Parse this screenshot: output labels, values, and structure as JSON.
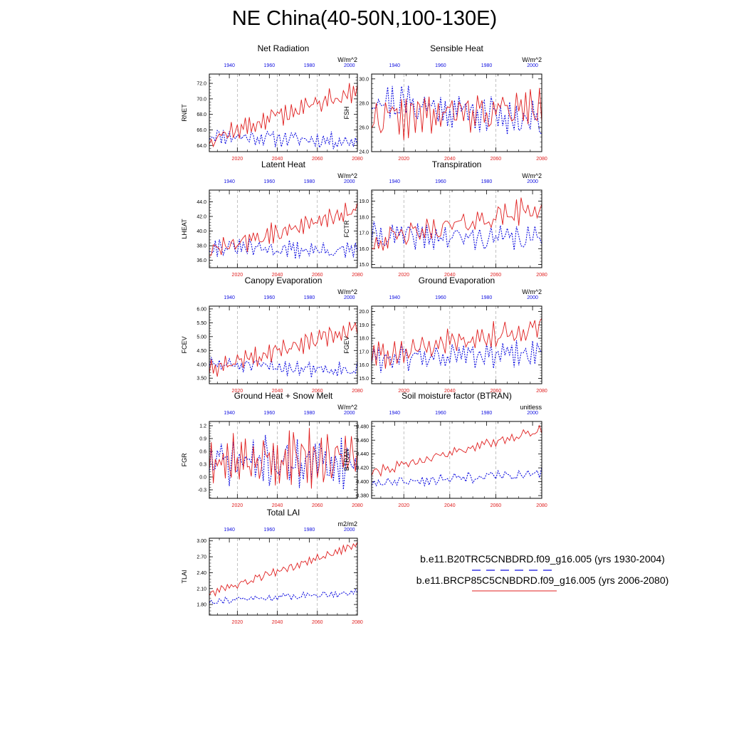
{
  "title": "NE China(40-50N,100-130E)",
  "legend": {
    "items": [
      {
        "label": "b.e11.B20TRC5CNBDRD.f09_g16.005 (yrs 1930-2004)",
        "color": "#1010e0",
        "dash": "dashed"
      },
      {
        "label": "b.e11.BRCP85C5CNBDRD.f09_g16.005 (yrs 2006-2080)",
        "color": "#e02020",
        "dash": "solid"
      }
    ]
  },
  "colors": {
    "historical": "#1010e0",
    "future": "#e02020"
  },
  "chart_data": [
    {
      "type": "line",
      "title": "Net Radiation",
      "ylabel": "RNET",
      "units": "W/m^2",
      "ylim": [
        63.2,
        73.2
      ],
      "yticks": [
        64,
        66,
        68,
        70,
        72
      ],
      "ytick_labels": [
        "64.0",
        "66.0",
        "68.0",
        "70.0",
        "72.0"
      ],
      "x_bottom": {
        "range": [
          2006,
          2080
        ],
        "ticks": [
          2020,
          2040,
          2060,
          2080
        ]
      },
      "x_top": {
        "range": [
          1930,
          2004
        ],
        "ticks": [
          1940,
          1960,
          1980,
          2000
        ]
      },
      "series": [
        {
          "name": "historical",
          "start": 65.3,
          "end": 64.5,
          "amp": 1.1,
          "seed": 11
        },
        {
          "name": "future",
          "start": 64.8,
          "end": 71.2,
          "amp": 1.4,
          "seed": 12
        }
      ]
    },
    {
      "type": "line",
      "title": "Sensible Heat",
      "ylabel": "FSH",
      "units": "W/m^2",
      "ylim": [
        24,
        30.4
      ],
      "yticks": [
        24,
        26,
        28,
        30
      ],
      "ytick_labels": [
        "24.0",
        "26.0",
        "28.0",
        "30.0"
      ],
      "x_bottom": {
        "range": [
          2006,
          2080
        ],
        "ticks": [
          2020,
          2040,
          2060,
          2080
        ]
      },
      "x_top": {
        "range": [
          1930,
          2004
        ],
        "ticks": [
          1940,
          1960,
          1980,
          2000
        ]
      },
      "series": [
        {
          "name": "historical",
          "start": 28.3,
          "end": 26.5,
          "amp": 1.7,
          "seed": 21
        },
        {
          "name": "future",
          "start": 26.7,
          "end": 27.6,
          "amp": 1.7,
          "seed": 22
        }
      ]
    },
    {
      "type": "line",
      "title": "Latent Heat",
      "ylabel": "LHEAT",
      "units": "W/m^2",
      "ylim": [
        35,
        45.6
      ],
      "yticks": [
        36,
        38,
        40,
        42,
        44
      ],
      "ytick_labels": [
        "36.0",
        "38.0",
        "40.0",
        "42.0",
        "44.0"
      ],
      "x_bottom": {
        "range": [
          2006,
          2080
        ],
        "ticks": [
          2020,
          2040,
          2060,
          2080
        ]
      },
      "x_top": {
        "range": [
          1930,
          2004
        ],
        "ticks": [
          1940,
          1960,
          1980,
          2000
        ]
      },
      "series": [
        {
          "name": "historical",
          "start": 37.8,
          "end": 37.2,
          "amp": 1.2,
          "seed": 31
        },
        {
          "name": "future",
          "start": 37.2,
          "end": 42.8,
          "amp": 1.4,
          "seed": 32
        }
      ]
    },
    {
      "type": "line",
      "title": "Transpiration",
      "ylabel": "FCTR",
      "units": "W/m^2",
      "ylim": [
        14.8,
        19.7
      ],
      "yticks": [
        15,
        16,
        17,
        18,
        19
      ],
      "ytick_labels": [
        "15.0",
        "16.0",
        "17.0",
        "18.0",
        "19.0"
      ],
      "x_bottom": {
        "range": [
          2006,
          2080
        ],
        "ticks": [
          2020,
          2040,
          2060,
          2080
        ]
      },
      "x_top": {
        "range": [
          1930,
          2004
        ],
        "ticks": [
          1940,
          1960,
          1980,
          2000
        ]
      },
      "series": [
        {
          "name": "historical",
          "start": 16.8,
          "end": 16.6,
          "amp": 0.9,
          "seed": 41
        },
        {
          "name": "future",
          "start": 16.4,
          "end": 18.6,
          "amp": 0.8,
          "seed": 42
        }
      ]
    },
    {
      "type": "line",
      "title": "Canopy Evaporation",
      "ylabel": "FCEV",
      "units": "W/m^2",
      "ylim": [
        3.3,
        6.1
      ],
      "yticks": [
        3.5,
        4,
        4.5,
        5,
        5.5,
        6
      ],
      "ytick_labels": [
        "3.50",
        "4.00",
        "4.50",
        "5.00",
        "5.50",
        "6.00"
      ],
      "x_bottom": {
        "range": [
          2006,
          2080
        ],
        "ticks": [
          2020,
          2040,
          2060,
          2080
        ]
      },
      "x_top": {
        "range": [
          1930,
          2004
        ],
        "ticks": [
          1940,
          1960,
          1980,
          2000
        ]
      },
      "series": [
        {
          "name": "historical",
          "start": 4.0,
          "end": 3.8,
          "amp": 0.3,
          "seed": 51
        },
        {
          "name": "future",
          "start": 3.8,
          "end": 5.3,
          "amp": 0.35,
          "seed": 52
        }
      ]
    },
    {
      "type": "line",
      "title": "Ground Evaporation",
      "ylabel": "FGEV",
      "units": "W/m^2",
      "ylim": [
        14.6,
        20.4
      ],
      "yticks": [
        15,
        16,
        17,
        18,
        19,
        20
      ],
      "ytick_labels": [
        "15.0",
        "16.0",
        "17.0",
        "18.0",
        "19.0",
        "20.0"
      ],
      "x_bottom": {
        "range": [
          2006,
          2080
        ],
        "ticks": [
          2020,
          2040,
          2060,
          2080
        ]
      },
      "x_top": {
        "range": [
          1930,
          2004
        ],
        "ticks": [
          1940,
          1960,
          1980,
          2000
        ]
      },
      "series": [
        {
          "name": "historical",
          "start": 16.5,
          "end": 16.8,
          "amp": 1.0,
          "seed": 61
        },
        {
          "name": "future",
          "start": 16.6,
          "end": 18.9,
          "amp": 1.0,
          "seed": 62
        }
      ]
    },
    {
      "type": "line",
      "title": "Ground Heat + Snow Melt",
      "ylabel": "FGR",
      "units": "W/m^2",
      "ylim": [
        -0.5,
        1.3
      ],
      "yticks": [
        -0.3,
        0,
        0.3,
        0.6,
        0.9,
        1.2
      ],
      "ytick_labels": [
        "-0.3",
        "0.0",
        "0.3",
        "0.6",
        "0.9",
        "1.2"
      ],
      "x_bottom": {
        "range": [
          2006,
          2080
        ],
        "ticks": [
          2020,
          2040,
          2060,
          2080
        ]
      },
      "x_top": {
        "range": [
          1930,
          2004
        ],
        "ticks": [
          1940,
          1960,
          1980,
          2000
        ]
      },
      "series": [
        {
          "name": "historical",
          "start": 0.35,
          "end": 0.35,
          "amp": 0.6,
          "seed": 71
        },
        {
          "name": "future",
          "start": 0.4,
          "end": 0.45,
          "amp": 0.6,
          "seed": 72
        }
      ]
    },
    {
      "type": "line",
      "title": "Soil moisture factor (BTRAN)",
      "ylabel": "BTRAN",
      "units": "unitless",
      "ylim": [
        0.376,
        0.487
      ],
      "yticks": [
        0.38,
        0.4,
        0.42,
        0.44,
        0.46,
        0.48
      ],
      "ytick_labels": [
        "0.380",
        "0.400",
        "0.420",
        "0.440",
        "0.460",
        "0.480"
      ],
      "x_bottom": {
        "range": [
          2006,
          2080
        ],
        "ticks": [
          2020,
          2040,
          2060,
          2080
        ]
      },
      "x_top": {
        "range": [
          1930,
          2004
        ],
        "ticks": [
          1940,
          1960,
          1980,
          2000
        ]
      },
      "series": [
        {
          "name": "historical",
          "start": 0.398,
          "end": 0.412,
          "amp": 0.008,
          "seed": 81
        },
        {
          "name": "future",
          "start": 0.412,
          "end": 0.476,
          "amp": 0.008,
          "seed": 82
        }
      ]
    },
    {
      "type": "line",
      "title": "Total LAI",
      "ylabel": "TLAI",
      "units": "m2/m2",
      "ylim": [
        1.6,
        3.05
      ],
      "yticks": [
        1.8,
        2.1,
        2.4,
        2.7,
        3.0
      ],
      "ytick_labels": [
        "1.80",
        "2.10",
        "2.40",
        "2.70",
        "3.00"
      ],
      "x_bottom": {
        "range": [
          2006,
          2080
        ],
        "ticks": [
          2020,
          2040,
          2060,
          2080
        ]
      },
      "x_top": {
        "range": [
          1930,
          2004
        ],
        "ticks": [
          1940,
          1960,
          1980,
          2000
        ]
      },
      "series": [
        {
          "name": "historical",
          "start": 1.86,
          "end": 2.03,
          "amp": 0.07,
          "seed": 91
        },
        {
          "name": "future",
          "start": 2.0,
          "end": 2.92,
          "amp": 0.08,
          "seed": 92
        }
      ]
    }
  ]
}
